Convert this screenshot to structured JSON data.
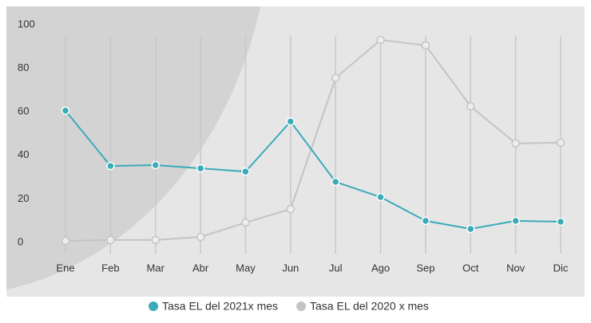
{
  "chart_data": {
    "type": "line",
    "categories": [
      "Ene",
      "Feb",
      "Mar",
      "Abr",
      "May",
      "Jun",
      "Jul",
      "Ago",
      "Sep",
      "Oct",
      "Nov",
      "Dic"
    ],
    "series": [
      {
        "name": "Tasa EL del 2021x mes",
        "color": "#3aabb8",
        "values": [
          62,
          36.6,
          37,
          35.5,
          34,
          57,
          29.3,
          22.3,
          11.4,
          7.7,
          11.4,
          11
        ]
      },
      {
        "name": "Tasa EL del 2020 x mes",
        "color": "#c4c4c4",
        "values": [
          2.2,
          2.6,
          2.6,
          4,
          10.6,
          16.8,
          77,
          94.5,
          92,
          64,
          47,
          47.3
        ]
      }
    ],
    "ylim": [
      0,
      100
    ],
    "yticks": [
      0,
      20,
      40,
      60,
      80,
      100
    ],
    "grid": true,
    "legend": "bottom"
  }
}
